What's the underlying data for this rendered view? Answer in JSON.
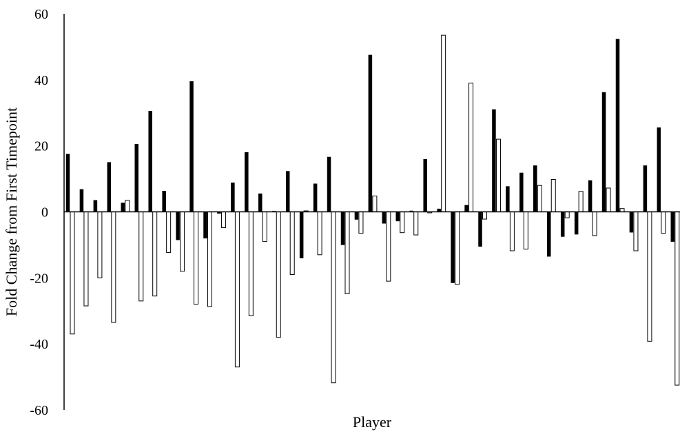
{
  "chart_data": {
    "type": "bar",
    "xlabel": "Player",
    "ylabel": "Fold Change from First Timepoint",
    "ylim": [
      -60,
      60
    ],
    "yticks": [
      -60,
      -40,
      -20,
      0,
      20,
      40,
      60
    ],
    "grid": false,
    "legend": "none",
    "colors": {
      "dark": "#000000",
      "light": "#ffffff",
      "outline": "#000000"
    },
    "series": [
      {
        "values": [
          17.5,
          6.8,
          3.5,
          15,
          2.7,
          20.5,
          30.5,
          6.3,
          -8.5,
          39.5,
          -8,
          -0.5,
          8.8,
          18,
          5.5,
          0.2,
          12.3,
          -14,
          8.5,
          16.6,
          -10,
          -2.3,
          47.5,
          -3.5,
          -2.8,
          0.3,
          15.9,
          0.9,
          -21.5,
          2,
          -10.5,
          31,
          7.7,
          11.8,
          14,
          -13.5,
          -7.5,
          -6.8,
          9.5,
          36.2,
          52.3,
          -6.2,
          14,
          25.5,
          -9
        ]
      },
      {
        "values": [
          -37,
          -28.5,
          -20,
          -33.5,
          3.5,
          -27,
          -25.5,
          -12.3,
          -18,
          -28,
          -28.7,
          -4.8,
          -47,
          -31.5,
          -9,
          -38,
          -19,
          0.3,
          -13,
          -51.8,
          -24.8,
          -6.5,
          4.8,
          -21,
          -6.3,
          -7,
          -0.3,
          53.5,
          -22,
          39,
          -2.2,
          22,
          -11.8,
          -11.3,
          8,
          9.8,
          -1.8,
          6.2,
          -7.2,
          7.2,
          1,
          -11.8,
          -39.2,
          -6.5,
          -52.5
        ]
      }
    ]
  }
}
